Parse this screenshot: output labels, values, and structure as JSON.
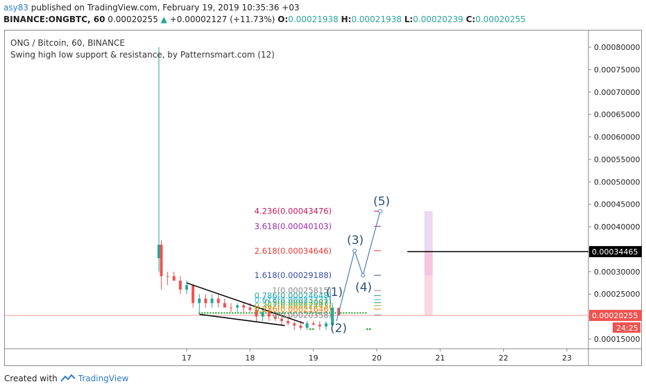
{
  "header": {
    "user": "asy83",
    "published": " published on TradingView.com, February 19, 2019 10:35:36 +03",
    "symbol": "BINANCE:ONGBTC, 60",
    "last": "0.00020255",
    "change": "+0.00002127 (+11.73%)",
    "o_label": "O:",
    "o_val": "0.00021938",
    "h_label": "H:",
    "h_val": "0.00021938",
    "l_label": "L:",
    "l_val": "0.00020239",
    "c_label": "C:",
    "c_val": "0.00020255"
  },
  "legend": {
    "title": "ONG / Bitcoin, 60, BINANCE",
    "indicator": "Swing high low support & resistance, by Patternsmart.com (12)"
  },
  "footer": {
    "created_with": "Created with",
    "brand": "TradingView"
  },
  "chart_data": {
    "type": "candlestick",
    "y_axis": {
      "ticks": [
        "0.00080000",
        "0.00075000",
        "0.00070000",
        "0.00065000",
        "0.00060000",
        "0.00055000",
        "0.00050000",
        "0.00045000",
        "0.00040000",
        "0.00035000",
        "0.00030000",
        "0.00025000",
        "0.00020000",
        "0.00015000"
      ],
      "tick_values": [
        0.0008,
        0.00075,
        0.0007,
        0.00065,
        0.0006,
        0.00055,
        0.0005,
        0.00045,
        0.0004,
        0.00035,
        0.0003,
        0.00025,
        0.0002,
        0.00015
      ],
      "range": [
        0.00012,
        0.00082
      ]
    },
    "x_axis": {
      "ticks": [
        "17",
        "18",
        "19",
        "20",
        "21",
        "22",
        "23"
      ],
      "tick_values": [
        17,
        18,
        19,
        20,
        21,
        22,
        23
      ],
      "range": [
        15.4,
        23.4
      ]
    },
    "candles": [
      {
        "t": 16.55,
        "o": 0.00036,
        "h": 0.0008,
        "l": 0.0003,
        "c": 0.00033,
        "up": true
      },
      {
        "t": 16.6,
        "o": 0.00036,
        "h": 0.00037,
        "l": 0.00026,
        "c": 0.00029,
        "up": false
      },
      {
        "t": 16.7,
        "o": 0.00029,
        "h": 0.0003,
        "l": 0.00027,
        "c": 0.00029,
        "up": false
      },
      {
        "t": 16.8,
        "o": 0.00029,
        "h": 0.0003,
        "l": 0.00028,
        "c": 0.00028,
        "up": false
      },
      {
        "t": 16.9,
        "o": 0.00028,
        "h": 0.00029,
        "l": 0.00025,
        "c": 0.00026,
        "up": false
      },
      {
        "t": 17.0,
        "o": 0.00026,
        "h": 0.00028,
        "l": 0.00025,
        "c": 0.00027,
        "up": true
      },
      {
        "t": 17.1,
        "o": 0.00027,
        "h": 0.00027,
        "l": 0.00022,
        "c": 0.00023,
        "up": false
      },
      {
        "t": 17.2,
        "o": 0.00023,
        "h": 0.00025,
        "l": 0.00021,
        "c": 0.00024,
        "up": true
      },
      {
        "t": 17.3,
        "o": 0.00024,
        "h": 0.00025,
        "l": 0.00022,
        "c": 0.00023,
        "up": false
      },
      {
        "t": 17.4,
        "o": 0.00023,
        "h": 0.00025,
        "l": 0.00022,
        "c": 0.00024,
        "up": true
      },
      {
        "t": 17.5,
        "o": 0.00024,
        "h": 0.00025,
        "l": 0.00022,
        "c": 0.00023,
        "up": false
      },
      {
        "t": 17.6,
        "o": 0.00023,
        "h": 0.00024,
        "l": 0.00022,
        "c": 0.00022,
        "up": false
      },
      {
        "t": 17.7,
        "o": 0.00022,
        "h": 0.00023,
        "l": 0.00021,
        "c": 0.00022,
        "up": false
      },
      {
        "t": 17.8,
        "o": 0.00022,
        "h": 0.00023,
        "l": 0.00021,
        "c": 0.000225,
        "up": true
      },
      {
        "t": 17.9,
        "o": 0.000225,
        "h": 0.00023,
        "l": 0.00021,
        "c": 0.00022,
        "up": false
      },
      {
        "t": 18.0,
        "o": 0.00022,
        "h": 0.00023,
        "l": 0.00021,
        "c": 0.000215,
        "up": false
      },
      {
        "t": 18.1,
        "o": 0.000215,
        "h": 0.00022,
        "l": 0.00019,
        "c": 0.0002,
        "up": false
      },
      {
        "t": 18.2,
        "o": 0.0002,
        "h": 0.00022,
        "l": 0.00019,
        "c": 0.00021,
        "up": true
      },
      {
        "t": 18.3,
        "o": 0.00021,
        "h": 0.00022,
        "l": 0.00019,
        "c": 0.0002,
        "up": false
      },
      {
        "t": 18.4,
        "o": 0.0002,
        "h": 0.00021,
        "l": 0.00019,
        "c": 0.000195,
        "up": false
      },
      {
        "t": 18.5,
        "o": 0.000195,
        "h": 0.0002,
        "l": 0.00018,
        "c": 0.00019,
        "up": false
      },
      {
        "t": 18.6,
        "o": 0.00019,
        "h": 0.0002,
        "l": 0.00018,
        "c": 0.000185,
        "up": false
      },
      {
        "t": 18.7,
        "o": 0.000185,
        "h": 0.00019,
        "l": 0.00017,
        "c": 0.00018,
        "up": false
      },
      {
        "t": 18.8,
        "o": 0.00018,
        "h": 0.00019,
        "l": 0.00017,
        "c": 0.000175,
        "up": false
      },
      {
        "t": 18.9,
        "o": 0.000175,
        "h": 0.00019,
        "l": 0.00017,
        "c": 0.000185,
        "up": true
      },
      {
        "t": 19.0,
        "o": 0.000185,
        "h": 0.00019,
        "l": 0.00018,
        "c": 0.000182,
        "up": false
      },
      {
        "t": 19.1,
        "o": 0.000182,
        "h": 0.00019,
        "l": 0.00017,
        "c": 0.000178,
        "up": false
      },
      {
        "t": 19.2,
        "o": 0.000178,
        "h": 0.00019,
        "l": 0.00017,
        "c": 0.000185,
        "up": true
      },
      {
        "t": 19.3,
        "o": 0.000181,
        "h": 0.00023,
        "l": 0.00018,
        "c": 0.00022,
        "up": true
      },
      {
        "t": 19.4,
        "o": 0.00021938,
        "h": 0.00021938,
        "l": 0.00020239,
        "c": 0.00020255,
        "up": false
      }
    ],
    "trendlines": [
      {
        "x": [
          17.0,
          18.85
        ],
        "y": [
          0.000275,
          0.000185
        ]
      },
      {
        "x": [
          17.2,
          18.55
        ],
        "y": [
          0.000205,
          0.00018
        ]
      }
    ],
    "fib_levels": [
      {
        "ratio": "4.236",
        "value": "0.00043476",
        "price": 0.00043476,
        "color": "#c2185b"
      },
      {
        "ratio": "3.618",
        "value": "0.00040103",
        "price": 0.00040103,
        "color": "#9c27b0"
      },
      {
        "ratio": "2.618",
        "value": "0.00034646",
        "price": 0.00034646,
        "color": "#e53935"
      },
      {
        "ratio": "1.618",
        "value": "0.00029188",
        "price": 0.00029188,
        "color": "#3949ab"
      },
      {
        "ratio": "1",
        "value": "0.00025815",
        "price": 0.00025815,
        "color": "#888888"
      },
      {
        "ratio": "0.786",
        "value": "0.00024648",
        "price": 0.00024648,
        "color": "#26a69a"
      },
      {
        "ratio": "0.618",
        "value": "0.00023731",
        "price": 0.00023731,
        "color": "#29b6f6"
      },
      {
        "ratio": "0.5",
        "value": "0.00023087",
        "price": 0.00023087,
        "color": "#43a047"
      },
      {
        "ratio": "0.382",
        "value": "0.00022443",
        "price": 0.00022443,
        "color": "#7cb342"
      },
      {
        "ratio": "0.236",
        "value": "0.00021646",
        "price": 0.00021646,
        "color": "#f57c00"
      },
      {
        "ratio": "0",
        "value": "0.00020358",
        "price": 0.00020358,
        "color": "#888888"
      }
    ],
    "fib_zone": {
      "x": [
        19.35,
        19.45
      ],
      "y_low": 0.00020358,
      "y_high": 0.00043476
    },
    "waves": [
      {
        "label": "(1)",
        "t": 19.35,
        "p": 0.00023
      },
      {
        "label": "(2)",
        "t": 19.38,
        "p": 0.000205
      },
      {
        "label": "(3)",
        "t": 19.65,
        "p": 0.00034646
      },
      {
        "label": "(4)",
        "t": 19.8,
        "p": 0.00029188
      },
      {
        "label": "(5)",
        "t": 20.05,
        "p": 0.00043476
      }
    ],
    "horizontal_line": {
      "price": 0.00034465,
      "x_start": 20.5,
      "label": "0.00034465"
    },
    "support_dots": {
      "price": 0.000205,
      "x": [
        17.2,
        20.0
      ]
    },
    "low_dots": [
      {
        "t": 18.95,
        "p": 0.000172
      },
      {
        "t": 19.85,
        "p": 0.000172
      }
    ],
    "price_line": {
      "price": 0.00020255,
      "label": "0.00020255",
      "color": "#ef5350"
    },
    "countdown": "24:25",
    "colors": {
      "up": "#26a69a",
      "down": "#ef5350",
      "wave": "#4a7fb5",
      "wave_label": "#2c4f7a",
      "trend": "#000000",
      "support": "#4caf50"
    }
  }
}
